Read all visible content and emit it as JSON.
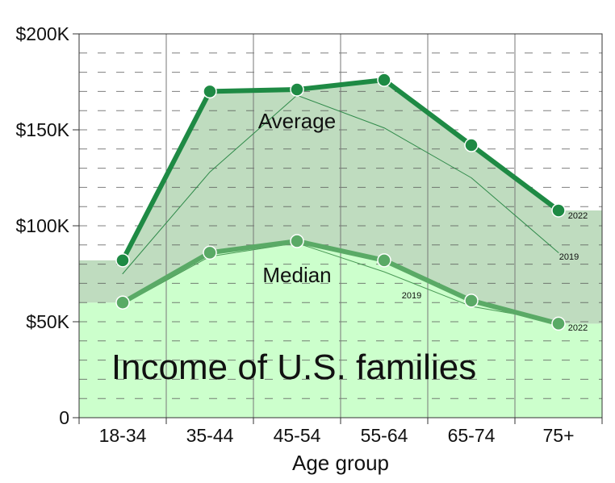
{
  "chart_data": {
    "type": "line",
    "title": "Income of U.S. families",
    "xlabel": "Age group",
    "ylabel": "",
    "categories": [
      "18-34",
      "35-44",
      "45-54",
      "55-64",
      "65-74",
      "75+"
    ],
    "ylim": [
      0,
      200000
    ],
    "y_ticks": [
      {
        "value": 0,
        "label": "0"
      },
      {
        "value": 50000,
        "label": "$50K"
      },
      {
        "value": 100000,
        "label": "$100K"
      },
      {
        "value": 150000,
        "label": "$150K"
      },
      {
        "value": 200000,
        "label": "$200K"
      }
    ],
    "grid": true,
    "series": [
      {
        "name": "Average",
        "year": "2022",
        "values": [
          82000,
          170000,
          171000,
          176000,
          142000,
          108000
        ],
        "color": "#1e8a44"
      },
      {
        "name": "Average",
        "year": "2019",
        "values": [
          75000,
          128000,
          168000,
          151000,
          125000,
          86000
        ],
        "color": "#2f8a4a"
      },
      {
        "name": "Median",
        "year": "2022",
        "values": [
          60000,
          86000,
          92000,
          82000,
          61000,
          49000
        ],
        "color": "#5aaa66"
      },
      {
        "name": "Median",
        "year": "2019",
        "values": [
          59000,
          84000,
          91000,
          76000,
          58000,
          50000
        ],
        "color": "#4a9a56"
      }
    ],
    "background_bands": [
      {
        "category": "18-34",
        "median": 60000,
        "average": 82000
      },
      {
        "category": "75+",
        "median": 49000,
        "average": 108000
      }
    ],
    "colors": {
      "median_fill": "#ccffcc",
      "average_fill": "#bfdcbf",
      "grid_line": "#555555",
      "frame": "#333333"
    }
  }
}
